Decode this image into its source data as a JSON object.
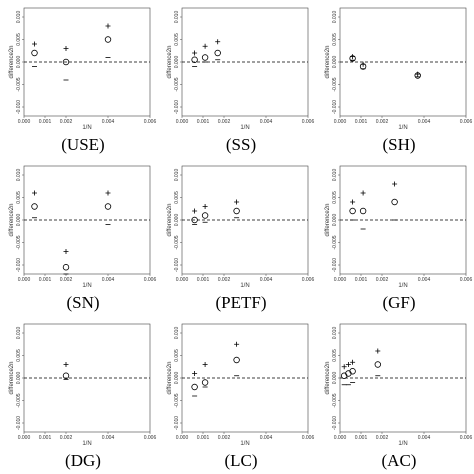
{
  "chart_data": [
    {
      "type": "scatter",
      "label": "(USE)",
      "xlabel": "1/N",
      "ylabel": "difference2n",
      "xlim": [
        0,
        0.006
      ],
      "ylim": [
        -0.012,
        0.012
      ],
      "xticks": [
        {
          "value": 0,
          "label": "0.000"
        },
        {
          "value": 0.001,
          "label": "0.001"
        },
        {
          "value": 0.002,
          "label": "0.002"
        },
        {
          "value": 0.004,
          "label": "0.004"
        },
        {
          "value": 0.006,
          "label": "0.006"
        }
      ],
      "yticks": [
        {
          "value": -0.01,
          "label": "-0.010"
        },
        {
          "value": -0.005,
          "label": "-0.005"
        },
        {
          "value": 0,
          "label": "0.000"
        },
        {
          "value": 0.005,
          "label": "0.005"
        },
        {
          "value": 0.01,
          "label": "0.010"
        }
      ],
      "reference_line": 0,
      "x": [
        0.0005,
        0.002,
        0.004
      ],
      "series": [
        {
          "marker": "circle",
          "values": [
            0.002,
            0.0,
            0.005
          ]
        },
        {
          "marker": "plus",
          "values": [
            0.004,
            0.003,
            0.008
          ]
        },
        {
          "marker": "minus",
          "values": [
            -0.001,
            -0.004,
            0.001
          ]
        }
      ]
    },
    {
      "type": "scatter",
      "label": "(SS)",
      "xlabel": "1/N",
      "ylabel": "difference2n",
      "xlim": [
        0,
        0.006
      ],
      "ylim": [
        -0.012,
        0.012
      ],
      "xticks": [
        {
          "value": 0,
          "label": "0.000"
        },
        {
          "value": 0.001,
          "label": "0.001"
        },
        {
          "value": 0.002,
          "label": "0.002"
        },
        {
          "value": 0.004,
          "label": "0.004"
        },
        {
          "value": 0.006,
          "label": "0.006"
        }
      ],
      "yticks": [
        {
          "value": -0.01,
          "label": "-0.010"
        },
        {
          "value": -0.005,
          "label": "-0.005"
        },
        {
          "value": 0,
          "label": "0.000"
        },
        {
          "value": 0.005,
          "label": "0.005"
        },
        {
          "value": 0.01,
          "label": "0.010"
        }
      ],
      "reference_line": 0,
      "x": [
        0.0006,
        0.0011,
        0.0017
      ],
      "series": [
        {
          "marker": "circle",
          "values": [
            0.0005,
            0.001,
            0.002
          ]
        },
        {
          "marker": "plus",
          "values": [
            0.002,
            0.0035,
            0.0045
          ]
        },
        {
          "marker": "minus",
          "values": [
            -0.001,
            0.0,
            0.0005
          ]
        }
      ]
    },
    {
      "type": "scatter",
      "label": "(SH)",
      "xlabel": "1/N",
      "ylabel": "difference2n",
      "xlim": [
        0,
        0.006
      ],
      "ylim": [
        -0.012,
        0.012
      ],
      "xticks": [
        {
          "value": 0,
          "label": "0.000"
        },
        {
          "value": 0.001,
          "label": "0.001"
        },
        {
          "value": 0.002,
          "label": "0.002"
        },
        {
          "value": 0.004,
          "label": "0.004"
        },
        {
          "value": 0.006,
          "label": "0.006"
        }
      ],
      "yticks": [
        {
          "value": -0.01,
          "label": "-0.010"
        },
        {
          "value": -0.005,
          "label": "-0.005"
        },
        {
          "value": 0,
          "label": "0.000"
        },
        {
          "value": 0.005,
          "label": "0.005"
        },
        {
          "value": 0.01,
          "label": "0.010"
        }
      ],
      "reference_line": 0,
      "x": [
        0.0006,
        0.0011,
        0.0037
      ],
      "series": [
        {
          "marker": "circle",
          "values": [
            0.0008,
            -0.001,
            -0.003
          ]
        },
        {
          "marker": "plus",
          "values": [
            0.0012,
            -0.0005,
            -0.0027
          ]
        },
        {
          "marker": "minus",
          "values": [
            0.0004,
            -0.0015,
            -0.0033
          ]
        }
      ]
    },
    {
      "type": "scatter",
      "label": "(SN)",
      "xlabel": "1/N",
      "ylabel": "difference2n",
      "xlim": [
        0,
        0.006
      ],
      "ylim": [
        -0.012,
        0.012
      ],
      "xticks": [
        {
          "value": 0,
          "label": "0.000"
        },
        {
          "value": 0.001,
          "label": "0.001"
        },
        {
          "value": 0.002,
          "label": "0.002"
        },
        {
          "value": 0.004,
          "label": "0.004"
        },
        {
          "value": 0.006,
          "label": "0.006"
        }
      ],
      "yticks": [
        {
          "value": -0.01,
          "label": "-0.010"
        },
        {
          "value": -0.005,
          "label": "-0.005"
        },
        {
          "value": 0,
          "label": "0.000"
        },
        {
          "value": 0.005,
          "label": "0.005"
        },
        {
          "value": 0.01,
          "label": "0.010"
        }
      ],
      "reference_line": 0,
      "x": [
        0.0005,
        0.002,
        0.004
      ],
      "series": [
        {
          "marker": "circle",
          "values": [
            0.003,
            -0.0105,
            0.003
          ]
        },
        {
          "marker": "plus",
          "values": [
            0.006,
            -0.007,
            0.006
          ]
        },
        {
          "marker": "minus",
          "values": [
            0.0005,
            -0.012,
            -0.001
          ]
        }
      ]
    },
    {
      "type": "scatter",
      "label": "(PETF)",
      "xlabel": "1/N",
      "ylabel": "difference2n",
      "xlim": [
        0,
        0.006
      ],
      "ylim": [
        -0.012,
        0.012
      ],
      "xticks": [
        {
          "value": 0,
          "label": "0.000"
        },
        {
          "value": 0.001,
          "label": "0.001"
        },
        {
          "value": 0.002,
          "label": "0.002"
        },
        {
          "value": 0.004,
          "label": "0.004"
        },
        {
          "value": 0.006,
          "label": "0.006"
        }
      ],
      "yticks": [
        {
          "value": -0.01,
          "label": "-0.010"
        },
        {
          "value": -0.005,
          "label": "-0.005"
        },
        {
          "value": 0,
          "label": "0.000"
        },
        {
          "value": 0.005,
          "label": "0.005"
        },
        {
          "value": 0.01,
          "label": "0.010"
        }
      ],
      "reference_line": 0,
      "x": [
        0.0006,
        0.0011,
        0.0026
      ],
      "series": [
        {
          "marker": "circle",
          "values": [
            0.0,
            0.001,
            0.002
          ]
        },
        {
          "marker": "plus",
          "values": [
            0.002,
            0.003,
            0.004
          ]
        },
        {
          "marker": "minus",
          "values": [
            -0.001,
            -0.0005,
            0.0005
          ]
        }
      ]
    },
    {
      "type": "scatter",
      "label": "(GF)",
      "xlabel": "1/N",
      "ylabel": "difference2n",
      "xlim": [
        0,
        0.006
      ],
      "ylim": [
        -0.012,
        0.012
      ],
      "xticks": [
        {
          "value": 0,
          "label": "0.000"
        },
        {
          "value": 0.001,
          "label": "0.001"
        },
        {
          "value": 0.002,
          "label": "0.002"
        },
        {
          "value": 0.004,
          "label": "0.004"
        },
        {
          "value": 0.006,
          "label": "0.006"
        }
      ],
      "yticks": [
        {
          "value": -0.01,
          "label": "-0.010"
        },
        {
          "value": -0.005,
          "label": "-0.005"
        },
        {
          "value": 0,
          "label": "0.000"
        },
        {
          "value": 0.005,
          "label": "0.005"
        },
        {
          "value": 0.01,
          "label": "0.010"
        }
      ],
      "reference_line": 0,
      "x": [
        0.0006,
        0.0011,
        0.0026
      ],
      "series": [
        {
          "marker": "circle",
          "values": [
            0.002,
            0.002,
            0.004
          ]
        },
        {
          "marker": "plus",
          "values": [
            0.004,
            0.006,
            0.008
          ]
        },
        {
          "marker": "minus",
          "values": [
            0.0,
            -0.002,
            0.0
          ]
        }
      ]
    },
    {
      "type": "scatter",
      "label": "(DG)",
      "xlabel": "1/N",
      "ylabel": "difference2n",
      "xlim": [
        0,
        0.006
      ],
      "ylim": [
        -0.012,
        0.012
      ],
      "xticks": [
        {
          "value": 0,
          "label": "0.000"
        },
        {
          "value": 0.001,
          "label": "0.001"
        },
        {
          "value": 0.002,
          "label": "0.002"
        },
        {
          "value": 0.004,
          "label": "0.004"
        },
        {
          "value": 0.006,
          "label": "0.006"
        }
      ],
      "yticks": [
        {
          "value": -0.01,
          "label": "-0.010"
        },
        {
          "value": -0.005,
          "label": "-0.005"
        },
        {
          "value": 0,
          "label": "0.000"
        },
        {
          "value": 0.005,
          "label": "0.005"
        },
        {
          "value": 0.01,
          "label": "0.010"
        }
      ],
      "reference_line": 0,
      "x": [
        0.002
      ],
      "series": [
        {
          "marker": "circle",
          "values": [
            0.0005
          ]
        },
        {
          "marker": "plus",
          "values": [
            0.003
          ]
        },
        {
          "marker": "minus",
          "values": [
            -0.0003
          ]
        }
      ]
    },
    {
      "type": "scatter",
      "label": "(LC)",
      "xlabel": "1/N",
      "ylabel": "difference2n",
      "xlim": [
        0,
        0.006
      ],
      "ylim": [
        -0.012,
        0.012
      ],
      "xticks": [
        {
          "value": 0,
          "label": "0.000"
        },
        {
          "value": 0.001,
          "label": "0.001"
        },
        {
          "value": 0.002,
          "label": "0.002"
        },
        {
          "value": 0.004,
          "label": "0.004"
        },
        {
          "value": 0.006,
          "label": "0.006"
        }
      ],
      "yticks": [
        {
          "value": -0.01,
          "label": "-0.010"
        },
        {
          "value": -0.005,
          "label": "-0.005"
        },
        {
          "value": 0,
          "label": "0.000"
        },
        {
          "value": 0.005,
          "label": "0.005"
        },
        {
          "value": 0.01,
          "label": "0.010"
        }
      ],
      "reference_line": 0,
      "x": [
        0.0006,
        0.0011,
        0.0026
      ],
      "series": [
        {
          "marker": "circle",
          "values": [
            -0.002,
            -0.001,
            0.004
          ]
        },
        {
          "marker": "plus",
          "values": [
            0.001,
            0.003,
            0.0075
          ]
        },
        {
          "marker": "minus",
          "values": [
            -0.004,
            -0.002,
            0.0005
          ]
        }
      ]
    },
    {
      "type": "scatter",
      "label": "(AC)",
      "xlabel": "1/N",
      "ylabel": "difference2n",
      "xlim": [
        0,
        0.006
      ],
      "ylim": [
        -0.012,
        0.012
      ],
      "xticks": [
        {
          "value": 0,
          "label": "0.000"
        },
        {
          "value": 0.001,
          "label": "0.001"
        },
        {
          "value": 0.002,
          "label": "0.002"
        },
        {
          "value": 0.004,
          "label": "0.004"
        },
        {
          "value": 0.006,
          "label": "0.006"
        }
      ],
      "yticks": [
        {
          "value": -0.01,
          "label": "-0.010"
        },
        {
          "value": -0.005,
          "label": "-0.005"
        },
        {
          "value": 0,
          "label": "0.000"
        },
        {
          "value": 0.005,
          "label": "0.005"
        },
        {
          "value": 0.01,
          "label": "0.010"
        }
      ],
      "reference_line": 0,
      "x": [
        0.0002,
        0.0004,
        0.0006,
        0.0018
      ],
      "series": [
        {
          "marker": "circle",
          "values": [
            0.0005,
            0.001,
            0.0015,
            0.003
          ]
        },
        {
          "marker": "plus",
          "values": [
            0.0025,
            0.003,
            0.0035,
            0.006
          ]
        },
        {
          "marker": "minus",
          "values": [
            -0.0015,
            -0.0015,
            -0.001,
            0.0005
          ]
        }
      ]
    }
  ]
}
